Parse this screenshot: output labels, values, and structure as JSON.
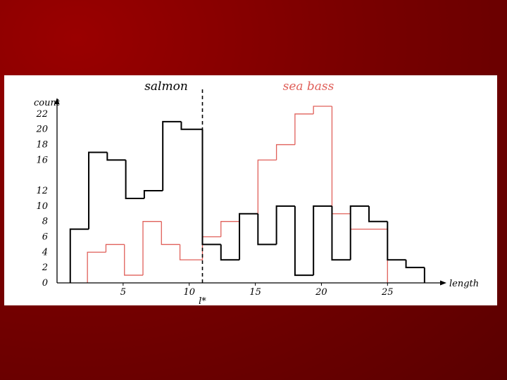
{
  "slide": {
    "background_color": "#7a0000"
  },
  "chart_data": {
    "type": "histogram",
    "xlabel": "length",
    "ylabel": "count",
    "xlim": [
      0,
      28.5
    ],
    "ylim": [
      0,
      23
    ],
    "x_ticks": [
      5,
      10,
      15,
      20,
      25
    ],
    "y_ticks": [
      0,
      2,
      4,
      6,
      8,
      10,
      12,
      16,
      18,
      20,
      22
    ],
    "grid": false,
    "threshold": {
      "x": 11,
      "label": "l*"
    },
    "series": [
      {
        "name": "salmon",
        "color": "#000000",
        "bins": [
          {
            "x0": 1,
            "x1": 2.4,
            "count": 7
          },
          {
            "x0": 2.4,
            "x1": 3.8,
            "count": 17
          },
          {
            "x0": 3.8,
            "x1": 5.2,
            "count": 16
          },
          {
            "x0": 5.2,
            "x1": 6.6,
            "count": 11
          },
          {
            "x0": 6.6,
            "x1": 8,
            "count": 12
          },
          {
            "x0": 8,
            "x1": 9.4,
            "count": 21
          },
          {
            "x0": 9.4,
            "x1": 11,
            "count": 20
          },
          {
            "x0": 11,
            "x1": 12.4,
            "count": 5
          },
          {
            "x0": 12.4,
            "x1": 13.8,
            "count": 3
          },
          {
            "x0": 13.8,
            "x1": 15.2,
            "count": 9
          },
          {
            "x0": 15.2,
            "x1": 16.6,
            "count": 5
          },
          {
            "x0": 16.6,
            "x1": 18,
            "count": 10
          },
          {
            "x0": 18,
            "x1": 19.4,
            "count": 1
          },
          {
            "x0": 19.4,
            "x1": 20.8,
            "count": 10
          },
          {
            "x0": 20.8,
            "x1": 22.2,
            "count": 3
          },
          {
            "x0": 22.2,
            "x1": 23.6,
            "count": 10
          },
          {
            "x0": 23.6,
            "x1": 25,
            "count": 8
          },
          {
            "x0": 25,
            "x1": 26.4,
            "count": 3
          },
          {
            "x0": 26.4,
            "x1": 27.8,
            "count": 2
          }
        ]
      },
      {
        "name": "sea bass",
        "color": "#e0605a",
        "bins": [
          {
            "x0": 2.3,
            "x1": 3.7,
            "count": 4
          },
          {
            "x0": 3.7,
            "x1": 5.1,
            "count": 5
          },
          {
            "x0": 5.1,
            "x1": 6.5,
            "count": 1
          },
          {
            "x0": 6.5,
            "x1": 7.9,
            "count": 8
          },
          {
            "x0": 7.9,
            "x1": 9.3,
            "count": 5
          },
          {
            "x0": 9.3,
            "x1": 11,
            "count": 3
          },
          {
            "x0": 11,
            "x1": 12.4,
            "count": 6
          },
          {
            "x0": 12.4,
            "x1": 13.8,
            "count": 8
          },
          {
            "x0": 13.8,
            "x1": 15.2,
            "count": 9
          },
          {
            "x0": 15.2,
            "x1": 16.6,
            "count": 16
          },
          {
            "x0": 16.6,
            "x1": 18,
            "count": 18
          },
          {
            "x0": 18,
            "x1": 19.4,
            "count": 22
          },
          {
            "x0": 19.4,
            "x1": 20.8,
            "count": 23
          },
          {
            "x0": 20.8,
            "x1": 22.2,
            "count": 9
          },
          {
            "x0": 22.2,
            "x1": 23.6,
            "count": 7
          },
          {
            "x0": 23.6,
            "x1": 25,
            "count": 7
          }
        ]
      }
    ]
  }
}
